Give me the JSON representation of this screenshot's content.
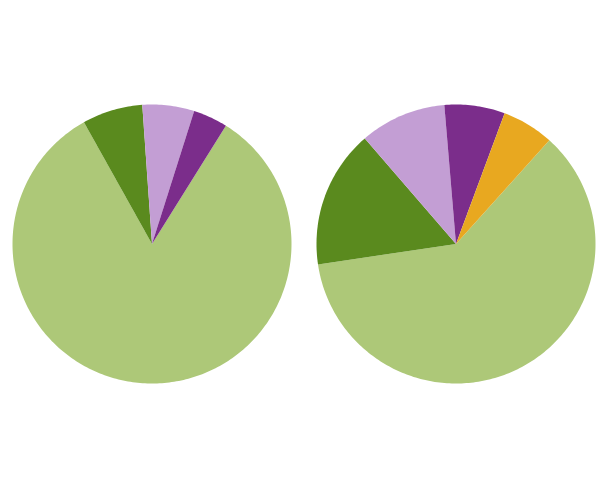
{
  "chart_data": [
    {
      "type": "pie",
      "values": [
        83,
        7,
        6,
        4
      ],
      "colors": [
        "#adc878",
        "#5a8a1e",
        "#c39ed4",
        "#7b2d8b"
      ]
    },
    {
      "type": "pie",
      "values": [
        61,
        16,
        10,
        7,
        6
      ],
      "colors": [
        "#adc878",
        "#5a8a1e",
        "#c39ed4",
        "#7b2d8b",
        "#e8a820"
      ]
    }
  ]
}
